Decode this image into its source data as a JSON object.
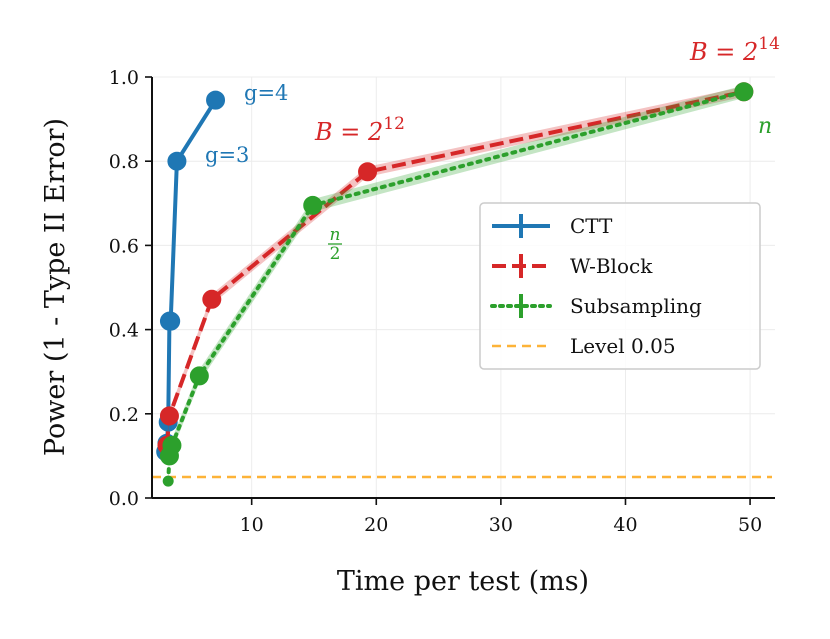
{
  "chart_data": {
    "type": "line",
    "title": "",
    "xlabel": "Time per test (ms)",
    "ylabel": "Power (1 - Type II Error)",
    "xlim": [
      2,
      52
    ],
    "ylim": [
      0,
      1.0
    ],
    "xticks": [
      10,
      20,
      30,
      40,
      50
    ],
    "yticks": [
      0.0,
      0.2,
      0.4,
      0.6,
      0.8,
      1.0
    ],
    "xtick_labels": [
      "10",
      "20",
      "30",
      "40",
      "50"
    ],
    "ytick_labels": [
      "0.0",
      "0.2",
      "0.4",
      "0.6",
      "0.8",
      "1.0"
    ],
    "legend_position": "center-right",
    "series": [
      {
        "name": "CTT",
        "color": "#1f77b4",
        "style": "solid",
        "x": [
          3.1,
          3.2,
          3.3,
          3.4,
          3.5,
          4.0,
          7.1
        ],
        "y": [
          0.11,
          0.13,
          0.18,
          0.42,
          0.42,
          0.8,
          0.945
        ],
        "band": 0.0
      },
      {
        "name": "W-Block",
        "color": "#d62728",
        "style": "dashed",
        "x": [
          3.2,
          3.4,
          6.8,
          19.3,
          49.5
        ],
        "y": [
          0.125,
          0.195,
          0.472,
          0.775,
          0.965
        ],
        "band": 0.012
      },
      {
        "name": "Subsampling",
        "color": "#2ca02c",
        "style": "dotted",
        "x": [
          3.3,
          3.4,
          3.6,
          5.8,
          14.9,
          49.5
        ],
        "y": [
          0.04,
          0.1,
          0.125,
          0.29,
          0.695,
          0.965
        ],
        "band": 0.015
      }
    ],
    "reference_line": {
      "name": "Level 0.05",
      "y": 0.05,
      "color": "#fdb338",
      "style": "dashed"
    },
    "annotations": [
      {
        "text": "g=4",
        "color": "#1f77b4"
      },
      {
        "text": "g=3",
        "color": "#1f77b4"
      },
      {
        "text_base": "B = 2",
        "text_sup": "12",
        "color": "#d62728"
      },
      {
        "text_base": "B = 2",
        "text_sup": "14",
        "color": "#d62728"
      },
      {
        "text": "n",
        "color": "#2ca02c"
      },
      {
        "text_num": "n",
        "text_den": "2",
        "color": "#2ca02c"
      }
    ]
  }
}
